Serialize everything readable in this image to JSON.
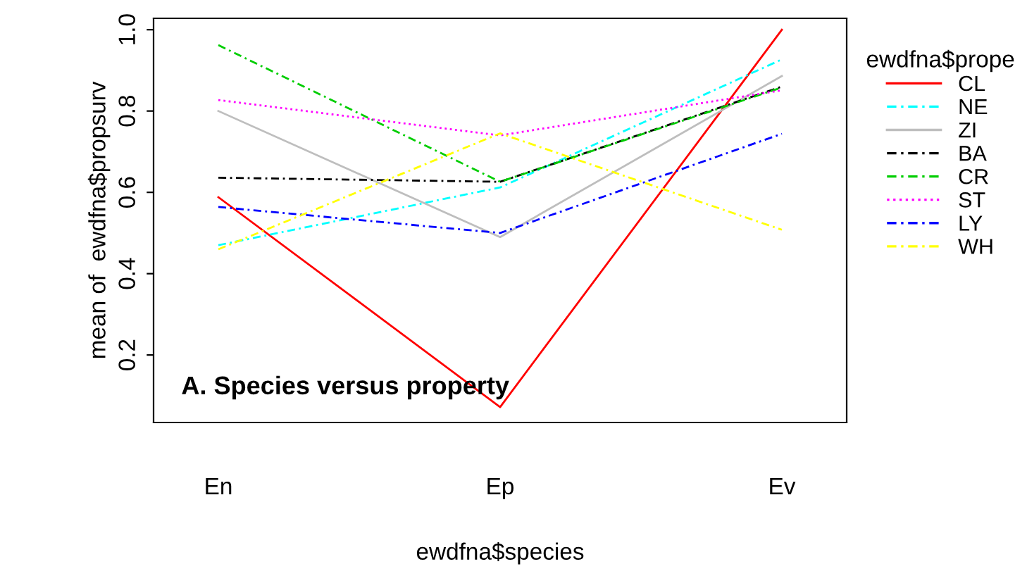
{
  "chart_data": {
    "type": "line",
    "xlabel": "ewdfna$species",
    "ylabel": "mean of  ewdfna$propsurv",
    "legend_title": "ewdfna$prope",
    "categories": [
      "En",
      "Ep",
      "Ev"
    ],
    "ylim": [
      0.034,
      1.028
    ],
    "yticks": [
      0.2,
      0.4,
      0.6,
      0.8,
      {
        "value": 1,
        "label": "1.0"
      }
    ],
    "grid": false,
    "legend": "right",
    "marker": "none",
    "annotations": [
      "A. Species versus property"
    ],
    "series": [
      {
        "name": "CL",
        "color": "#ff0000",
        "line_style": "solid",
        "values": [
          0.588,
          0.072,
          1.0
        ]
      },
      {
        "name": "NE",
        "color": "#00ffff",
        "line_style": "dashed",
        "values": [
          0.47,
          0.612,
          0.927
        ]
      },
      {
        "name": "ZI",
        "color": "#bebebe",
        "line_style": "solid",
        "values": [
          0.8,
          0.49,
          0.886
        ]
      },
      {
        "name": "BA",
        "color": "#000000",
        "line_style": "dashed",
        "values": [
          0.636,
          0.626,
          0.86
        ]
      },
      {
        "name": "CR",
        "color": "#00cd00",
        "line_style": "dashed",
        "values": [
          0.962,
          0.626,
          0.858
        ]
      },
      {
        "name": "ST",
        "color": "#ff00ff",
        "line_style": "dotted",
        "values": [
          0.827,
          0.74,
          0.851
        ]
      },
      {
        "name": "LY",
        "color": "#0000ff",
        "line_style": "dashed",
        "values": [
          0.564,
          0.5,
          0.744
        ]
      },
      {
        "name": "WH",
        "color": "#ffff00",
        "line_style": "dashed",
        "values": [
          0.46,
          0.745,
          0.508
        ]
      }
    ]
  }
}
